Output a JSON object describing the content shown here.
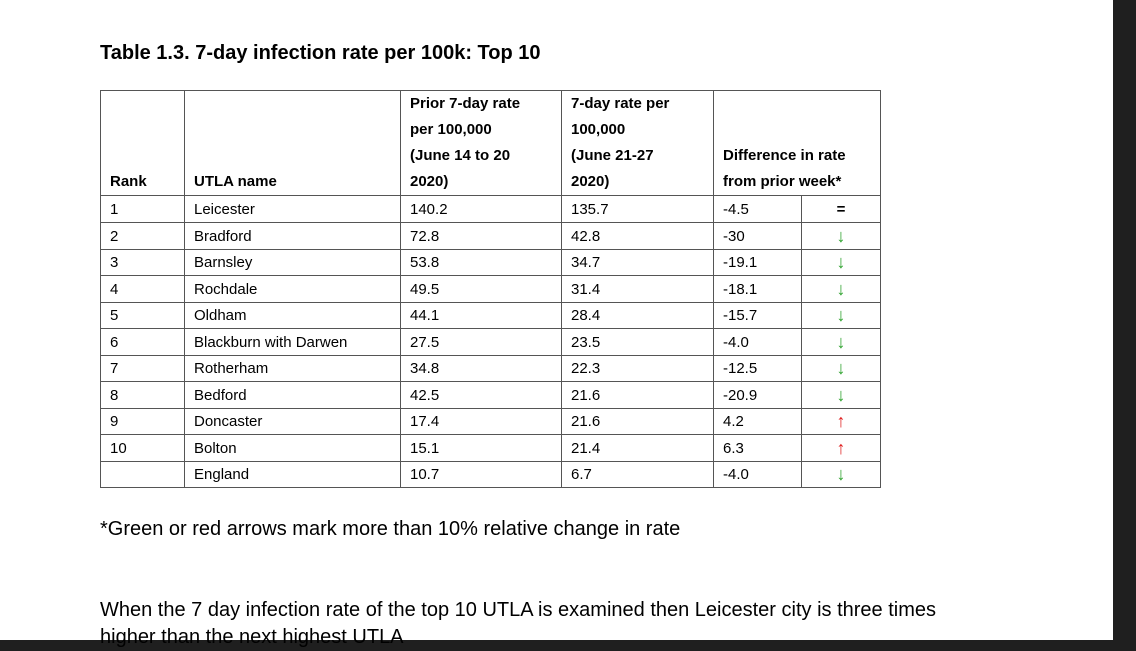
{
  "title": "Table 1.3. 7-day infection rate per 100k: Top 10",
  "headers": {
    "rank": "Rank",
    "utla": "UTLA name",
    "prior": [
      "Prior 7-day rate",
      "per 100,000",
      "(June 14 to 20",
      "2020)"
    ],
    "current": [
      "7-day rate per",
      "100,000",
      "(June 21-27",
      "2020)"
    ],
    "difference": [
      "Difference in rate",
      "from prior week*"
    ]
  },
  "rows": [
    {
      "rank": "1",
      "name": "Leicester",
      "prior": "140.2",
      "current": "135.7",
      "diff": "-4.5",
      "indicator": "=",
      "indicator_type": "equal"
    },
    {
      "rank": "2",
      "name": "Bradford",
      "prior": "72.8",
      "current": "42.8",
      "diff": "-30",
      "indicator": "↓",
      "indicator_type": "down"
    },
    {
      "rank": "3",
      "name": "Barnsley",
      "prior": "53.8",
      "current": "34.7",
      "diff": "-19.1",
      "indicator": "↓",
      "indicator_type": "down"
    },
    {
      "rank": "4",
      "name": "Rochdale",
      "prior": "49.5",
      "current": "31.4",
      "diff": "-18.1",
      "indicator": "↓",
      "indicator_type": "down"
    },
    {
      "rank": "5",
      "name": "Oldham",
      "prior": "44.1",
      "current": "28.4",
      "diff": "-15.7",
      "indicator": "↓",
      "indicator_type": "down"
    },
    {
      "rank": "6",
      "name": "Blackburn with Darwen",
      "prior": "27.5",
      "current": "23.5",
      "diff": "-4.0",
      "indicator": "↓",
      "indicator_type": "down"
    },
    {
      "rank": "7",
      "name": "Rotherham",
      "prior": "34.8",
      "current": "22.3",
      "diff": "-12.5",
      "indicator": "↓",
      "indicator_type": "down"
    },
    {
      "rank": "8",
      "name": "Bedford",
      "prior": "42.5",
      "current": "21.6",
      "diff": "-20.9",
      "indicator": "↓",
      "indicator_type": "down"
    },
    {
      "rank": "9",
      "name": "Doncaster",
      "prior": "17.4",
      "current": "21.6",
      "diff": "4.2",
      "indicator": "↑",
      "indicator_type": "up"
    },
    {
      "rank": "10",
      "name": "Bolton",
      "prior": "15.1",
      "current": "21.4",
      "diff": "6.3",
      "indicator": "↑",
      "indicator_type": "up"
    },
    {
      "rank": "",
      "name": "England",
      "prior": "10.7",
      "current": "6.7",
      "diff": "-4.0",
      "indicator": "↓",
      "indicator_type": "down"
    }
  ],
  "colors": {
    "down": "#2aa12a",
    "up": "#e02020"
  },
  "footnote": "*Green or red arrows mark more than 10% relative change in rate",
  "paragraph": "When the 7 day infection rate of the top 10 UTLA is examined then Leicester city is three times higher than the next highest UTLA"
}
